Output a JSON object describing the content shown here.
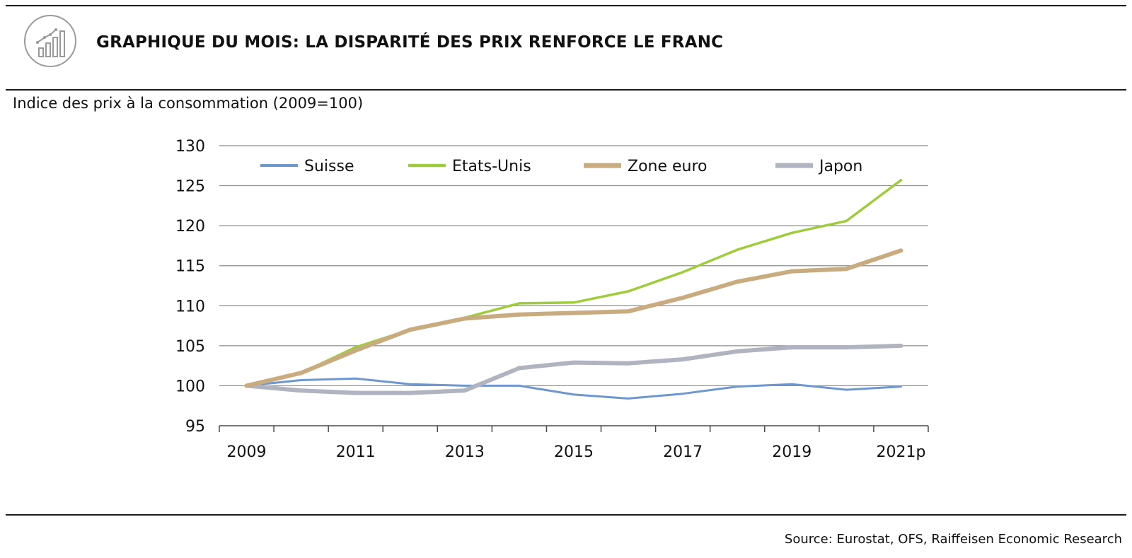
{
  "header": {
    "icon": "bar-chart-growth-icon",
    "title": "GRAPHIQUE DU MOIS: LA DISPARITÉ DES PRIX RENFORCE LE FRANC"
  },
  "chart_data": {
    "type": "line",
    "title": "",
    "subtitle": "Indice des prix à la consommation (2009=100)",
    "xlabel": "",
    "ylabel": "",
    "x": [
      "2009",
      "2010",
      "2011",
      "2012",
      "2013",
      "2014",
      "2015",
      "2016",
      "2017",
      "2018",
      "2019",
      "2020",
      "2021p"
    ],
    "x_tick_labels": [
      "2009",
      "2011",
      "2013",
      "2015",
      "2017",
      "2019",
      "2021p"
    ],
    "ylim": [
      95,
      130
    ],
    "y_ticks": [
      95,
      100,
      105,
      110,
      115,
      120,
      125,
      130
    ],
    "grid": "horizontal",
    "legend_position": "top",
    "series": [
      {
        "name": "Suisse",
        "color": "#6f97cf",
        "values": [
          100,
          100.7,
          100.9,
          100.2,
          100.0,
          100.0,
          98.9,
          98.4,
          99.0,
          99.9,
          100.2,
          99.5,
          99.9
        ]
      },
      {
        "name": "Etats-Unis",
        "color": "#9fcc3b",
        "values": [
          100,
          101.6,
          104.8,
          107.0,
          108.5,
          110.3,
          110.4,
          111.8,
          114.2,
          117.0,
          119.1,
          120.6,
          125.7
        ]
      },
      {
        "name": "Zone euro",
        "color": "#c8ac7f",
        "values": [
          100,
          101.6,
          104.4,
          107.0,
          108.4,
          108.9,
          109.1,
          109.3,
          111.0,
          113.0,
          114.3,
          114.6,
          116.9
        ]
      },
      {
        "name": "Japon",
        "color": "#b0b3c0",
        "values": [
          100,
          99.4,
          99.1,
          99.1,
          99.4,
          102.2,
          102.9,
          102.8,
          103.3,
          104.3,
          104.8,
          104.8,
          105.0
        ]
      }
    ]
  },
  "footer": {
    "source": "Source: Eurostat, OFS, Raiffeisen Economic Research"
  }
}
